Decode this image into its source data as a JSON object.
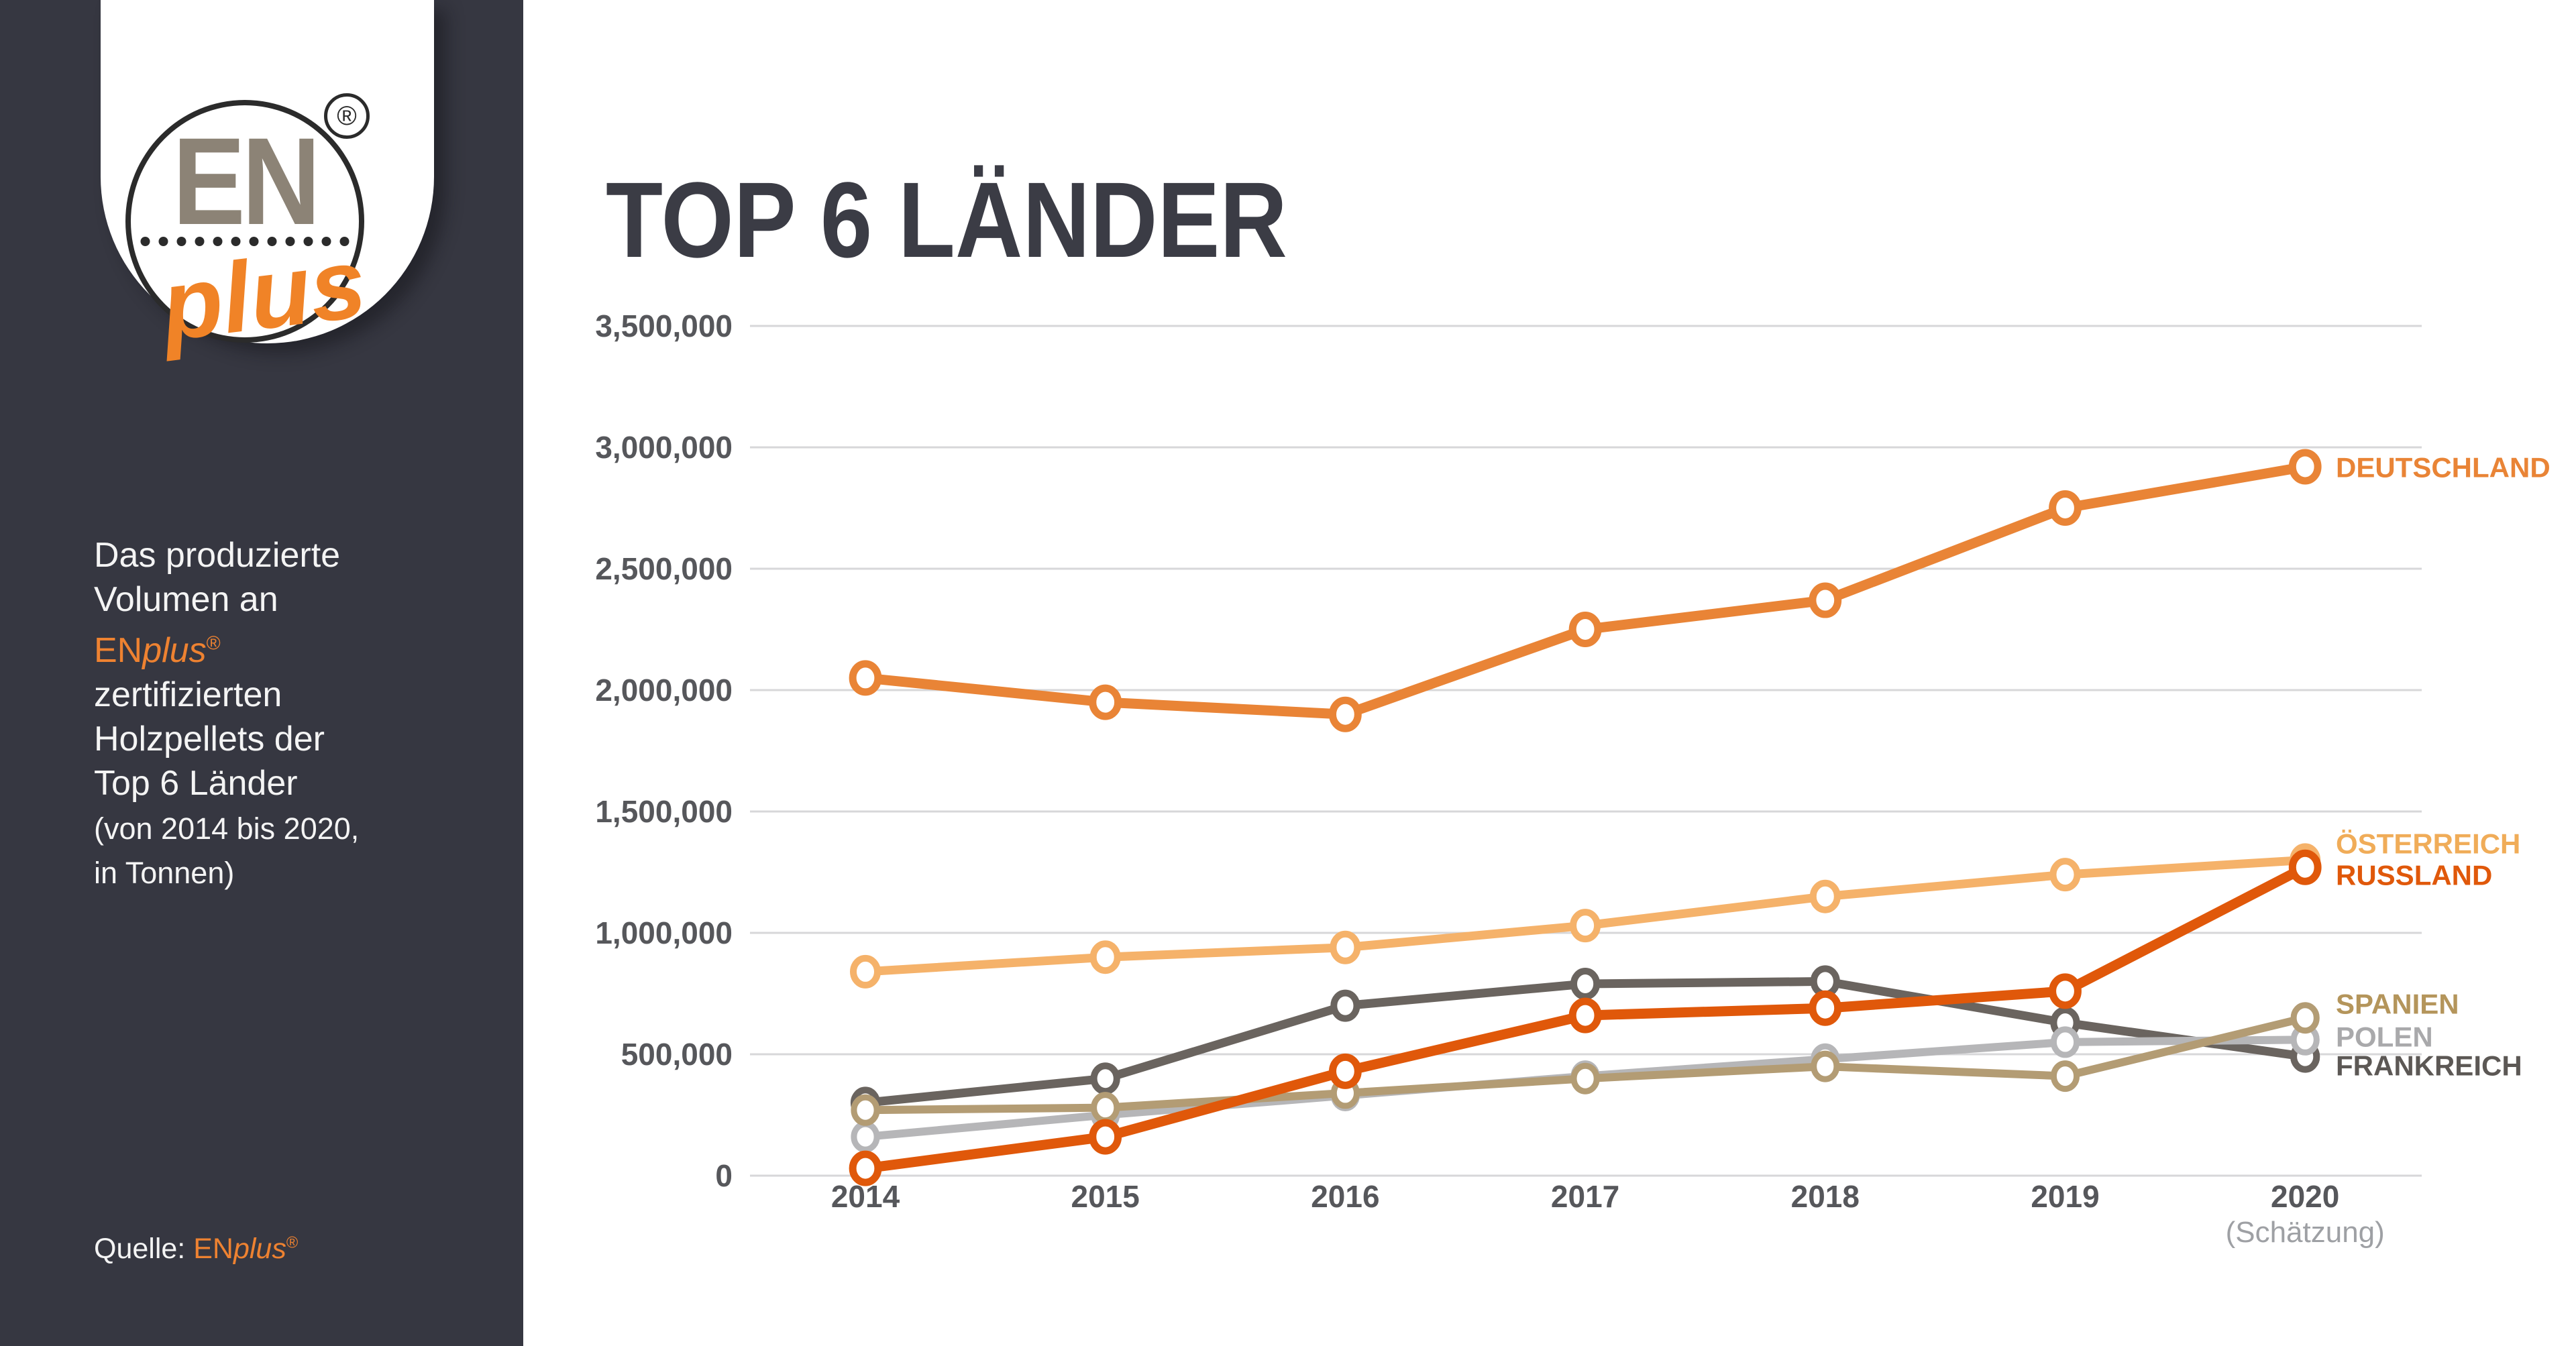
{
  "sidebar": {
    "logo": {
      "en": "EN",
      "plus": "plus",
      "registered": "®"
    },
    "description": {
      "line1": "Das produzierte",
      "line2": "Volumen an",
      "brand_en": "EN",
      "brand_plus": "plus",
      "brand_sup": "®",
      "line3": "zertifizierten",
      "line4": "Holzpellets der",
      "line5": "Top 6 Länder",
      "line6": "(von 2014 bis 2020,",
      "line7": "in Tonnen)"
    },
    "source_label": "Quelle:",
    "source_brand_en": "EN",
    "source_brand_plus": "plus",
    "source_sup": "®"
  },
  "header": {
    "title": "TOP 6 LÄNDER"
  },
  "chart_data": {
    "type": "line",
    "title": "TOP 6 LÄNDER",
    "unit": "Tonnen",
    "grid": true,
    "legend_position": "right-of-line-ends",
    "x_labels": [
      "2014",
      "2015",
      "2016",
      "2017",
      "2018",
      "2019",
      "2020"
    ],
    "x_annotation": {
      "year": "2020",
      "text": "(Schätzung)"
    },
    "ylim": [
      0,
      3500000
    ],
    "y_tick_values": [
      3500000,
      3000000,
      2500000,
      2000000,
      1500000,
      1000000,
      500000,
      0
    ],
    "y_tick_labels": [
      "3,500,000",
      "3,000,000",
      "2,500,000",
      "2,000,000",
      "1,500,000",
      "1,000,000",
      "500,000",
      "0"
    ],
    "series": [
      {
        "name": "DEUTSCHLAND",
        "color": "#E98436",
        "label_color": "#E98436",
        "values": [
          2050000,
          1950000,
          1900000,
          2250000,
          2370000,
          2750000,
          2920000
        ]
      },
      {
        "name": "ÖSTERREICH",
        "color": "#F5B26A",
        "label_color": "#F0AC58",
        "values": [
          840000,
          900000,
          940000,
          1030000,
          1150000,
          1240000,
          1300000
        ]
      },
      {
        "name": "RUSSLAND",
        "color": "#E0580A",
        "label_color": "#E0580A",
        "values": [
          30000,
          160000,
          430000,
          660000,
          690000,
          760000,
          1270000
        ]
      },
      {
        "name": "SPANIEN",
        "color": "#B39C74",
        "label_color": "#B4955B",
        "values": [
          270000,
          280000,
          340000,
          400000,
          450000,
          410000,
          650000
        ]
      },
      {
        "name": "POLEN",
        "color": "#B6B6B8",
        "label_color": "#A9A9AB",
        "values": [
          160000,
          250000,
          330000,
          410000,
          480000,
          550000,
          560000
        ]
      },
      {
        "name": "FRANKREICH",
        "color": "#6A645F",
        "label_color": "#5C5855",
        "values": [
          300000,
          400000,
          700000,
          790000,
          800000,
          630000,
          490000
        ]
      }
    ]
  }
}
